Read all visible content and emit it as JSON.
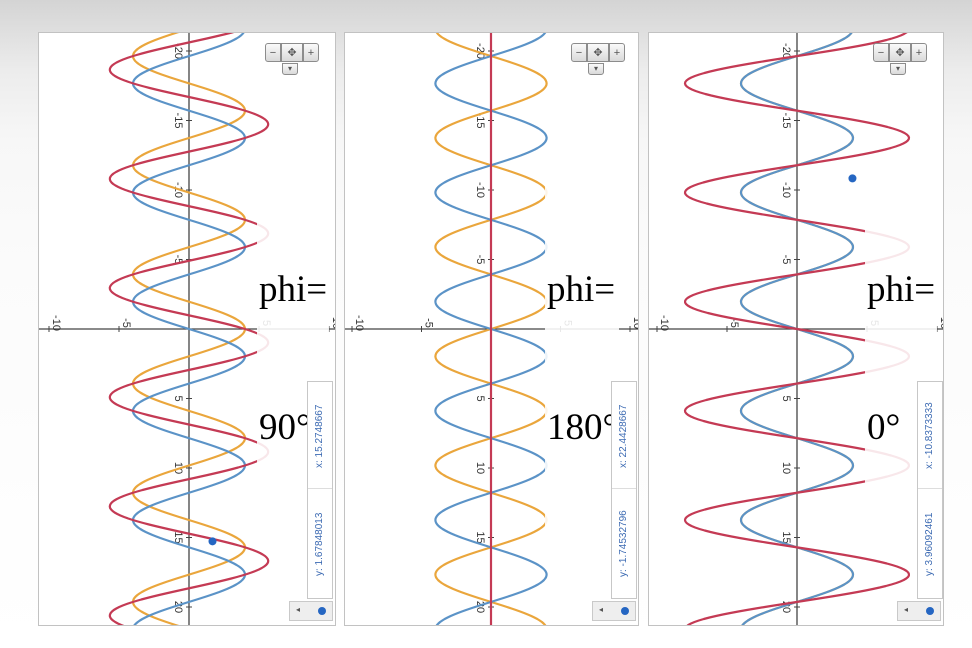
{
  "panels": [
    {
      "label_line1": "phi=",
      "label_line2": "90°",
      "coord_x": "x: 15.2748667",
      "coord_y": "y: 1.67848013",
      "phi_deg": 90
    },
    {
      "label_line1": "phi=",
      "label_line2": "180°",
      "coord_x": "x: 22.4428667",
      "coord_y": "y: -1.74532796",
      "phi_deg": 180
    },
    {
      "label_line1": "phi=",
      "label_line2": "0°",
      "coord_x": "x: -10.8373333",
      "coord_y": "y: 3.96092461",
      "phi_deg": 0
    }
  ],
  "controls": {
    "minus_icon": "minus-icon",
    "pan_icon": "pan-arrows-icon",
    "plus_icon": "plus-icon",
    "dropdown_icon": "chevron-down-icon",
    "minus_glyph": "−",
    "pan_glyph": "✥",
    "plus_glyph": "+",
    "down_glyph": "▾",
    "bottom_arrow_glyph": "◂"
  },
  "colors": {
    "blue": "#5b93c7",
    "orange": "#eaa63c",
    "red": "#c43a54",
    "axis": "#444444",
    "grid": "#d9d9d9",
    "dot": "#2566c2"
  },
  "chart_data": [
    {
      "type": "line",
      "orientation": "rotated 90° (x runs vertically)",
      "phi_deg": 90,
      "series": [
        {
          "color": "#5b93c7",
          "function": "4·sin(0.8·x)"
        },
        {
          "color": "#eaa63c",
          "function": "4·sin(0.8·x + 90°)"
        },
        {
          "color": "#c43a54",
          "function": "blue + orange"
        }
      ],
      "xlim": [
        -25,
        22
      ],
      "ylim": [
        -10,
        10
      ],
      "x_ticks": [
        -20,
        -15,
        -10,
        -5,
        5,
        10,
        15,
        20
      ],
      "x_tick_labels": [
        "-20",
        "-15",
        "-10",
        "-5",
        "5",
        "10",
        "15",
        "20"
      ],
      "y_ticks": [
        -10,
        -5,
        5,
        10
      ],
      "y_tick_labels": [
        "-10",
        "-5",
        "5",
        "10"
      ],
      "grid": false,
      "marked_point": {
        "x": 15.2748667,
        "y": 1.67848013
      }
    },
    {
      "type": "line",
      "orientation": "rotated 90° (x runs vertically)",
      "phi_deg": 180,
      "series": [
        {
          "color": "#5b93c7",
          "function": "4·sin(0.8·x)"
        },
        {
          "color": "#eaa63c",
          "function": "4·sin(0.8·x + 180°)"
        },
        {
          "color": "#c43a54",
          "function": "blue + orange"
        }
      ],
      "xlim": [
        -25,
        22
      ],
      "ylim": [
        -10,
        10
      ],
      "x_ticks": [
        -20,
        -15,
        -10,
        -5,
        5,
        10,
        15,
        20
      ],
      "x_tick_labels": [
        "-20",
        "-15",
        "-10",
        "-5",
        "5",
        "10",
        "15",
        "20"
      ],
      "y_ticks": [
        -10,
        -5,
        5,
        10
      ],
      "y_tick_labels": [
        "-10",
        "-5",
        "5",
        "10"
      ],
      "grid": false
    },
    {
      "type": "line",
      "orientation": "rotated 90° (x runs vertically)",
      "phi_deg": 0,
      "series": [
        {
          "color": "#5b93c7",
          "function": "4·sin(0.8·x)"
        },
        {
          "color": "#eaa63c",
          "function": "4·sin(0.8·x + 0°)"
        },
        {
          "color": "#c43a54",
          "function": "blue + orange"
        }
      ],
      "xlim": [
        -25,
        22
      ],
      "ylim": [
        -10,
        10
      ],
      "x_ticks": [
        -20,
        -15,
        -10,
        -5,
        5,
        10,
        15,
        20
      ],
      "x_tick_labels": [
        "-20",
        "-15",
        "-10",
        "-5",
        "5",
        "10",
        "15",
        "20"
      ],
      "y_ticks": [
        -10,
        -5,
        5,
        10
      ],
      "y_tick_labels": [
        "-10",
        "-5",
        "5",
        "10"
      ],
      "grid": false,
      "marked_point": {
        "x": -10.8373333,
        "y": 3.96092461
      }
    }
  ]
}
